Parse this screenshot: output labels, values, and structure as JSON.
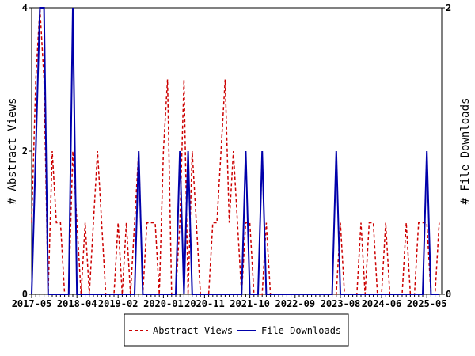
{
  "chart_data": {
    "type": "line",
    "categories": [
      "2017-05",
      null,
      null,
      null,
      null,
      null,
      null,
      null,
      null,
      null,
      null,
      "2018-04",
      null,
      null,
      null,
      null,
      null,
      null,
      null,
      null,
      null,
      "2019-02",
      null,
      null,
      null,
      null,
      null,
      null,
      null,
      null,
      null,
      null,
      "2020-01",
      null,
      null,
      null,
      null,
      null,
      null,
      null,
      null,
      null,
      "2020-11",
      null,
      null,
      null,
      null,
      null,
      null,
      null,
      null,
      null,
      null,
      "2021-10",
      null,
      null,
      null,
      null,
      null,
      null,
      null,
      null,
      null,
      null,
      "2022-09",
      null,
      null,
      null,
      null,
      null,
      null,
      null,
      null,
      null,
      null,
      "2023-08",
      null,
      null,
      null,
      null,
      null,
      null,
      null,
      null,
      null,
      "2024-06",
      null,
      null,
      null,
      null,
      null,
      null,
      null,
      null,
      null,
      null,
      "2025-05",
      null,
      null,
      null
    ],
    "y_label": "# Abstract Views",
    "y2_label": "# File Downloads",
    "ylim": [
      0,
      4
    ],
    "yticks": [
      0,
      2,
      4
    ],
    "y2lim": [
      0,
      2
    ],
    "y2ticks": [
      0,
      2
    ],
    "series": [
      {
        "name": "Abstract Views",
        "color": "#cc0000",
        "dashed": true,
        "values": [
          1,
          3,
          4,
          3,
          0,
          2,
          1,
          1,
          0,
          0,
          2,
          1,
          0,
          1,
          0,
          1,
          2,
          1,
          0,
          0,
          0,
          1,
          0,
          1,
          0,
          1,
          2,
          0,
          1,
          1,
          1,
          0,
          2,
          3,
          0,
          0,
          1,
          3,
          0,
          2,
          1,
          0,
          0,
          0,
          1,
          1,
          2,
          3,
          1,
          2,
          1,
          0,
          1,
          1,
          0,
          0,
          0,
          1,
          0,
          0,
          0,
          0,
          0,
          0,
          0,
          0,
          0,
          0,
          0,
          0,
          0,
          0,
          0,
          0,
          0,
          1,
          0,
          0,
          0,
          0,
          1,
          0,
          1,
          1,
          0,
          0,
          1,
          0,
          0,
          0,
          0,
          1,
          0,
          0,
          1,
          1,
          1,
          0,
          0,
          1
        ]
      },
      {
        "name": "File Downloads",
        "color": "#0000aa",
        "dashed": false,
        "axis": "y2",
        "values": [
          0,
          1,
          2,
          2,
          0,
          0,
          0,
          0,
          0,
          0,
          2,
          0,
          0,
          0,
          0,
          0,
          0,
          0,
          0,
          0,
          0,
          0,
          0,
          0,
          0,
          0,
          1,
          0,
          0,
          0,
          0,
          0,
          0,
          0,
          0,
          0,
          1,
          0,
          1,
          0,
          0,
          0,
          0,
          0,
          0,
          0,
          0,
          0,
          0,
          0,
          0,
          0,
          1,
          0,
          0,
          0,
          1,
          0,
          0,
          0,
          0,
          0,
          0,
          0,
          0,
          0,
          0,
          0,
          0,
          0,
          0,
          0,
          0,
          0,
          1,
          0,
          0,
          0,
          0,
          0,
          0,
          0,
          0,
          0,
          0,
          0,
          0,
          0,
          0,
          0,
          0,
          0,
          0,
          0,
          0,
          0,
          1,
          0,
          0,
          0
        ]
      }
    ]
  }
}
